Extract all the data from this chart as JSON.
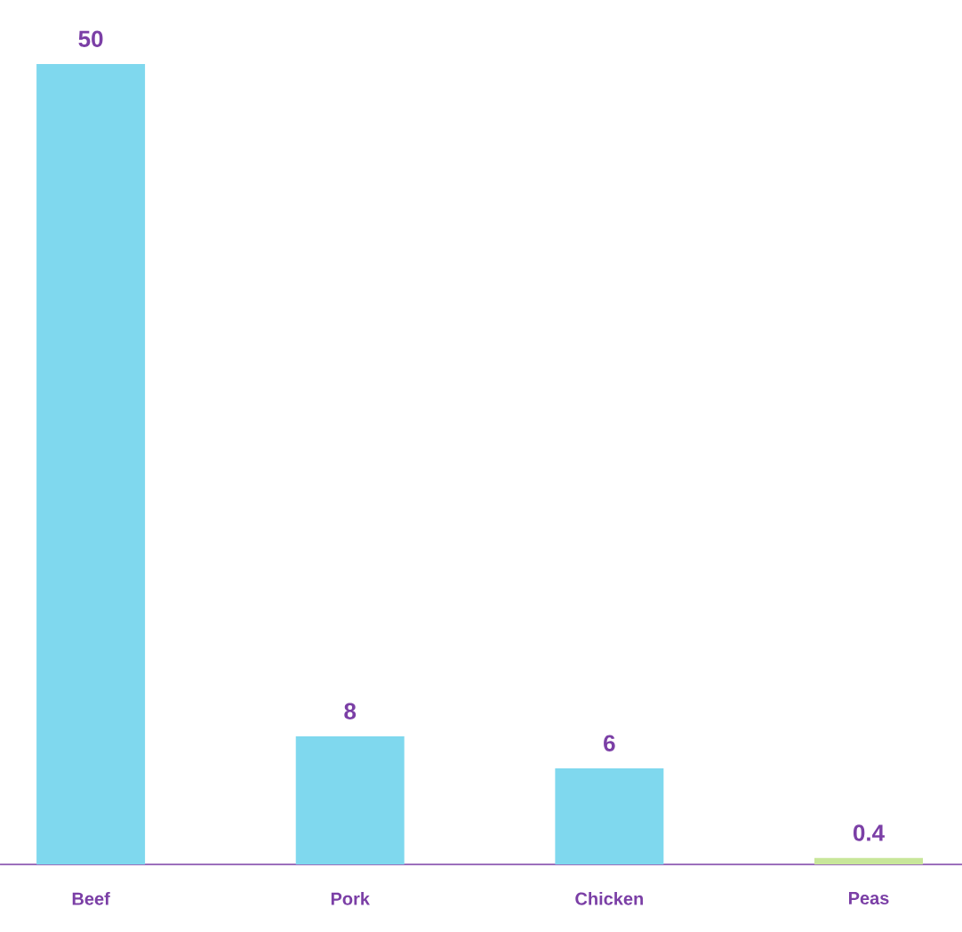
{
  "chart_data": {
    "type": "bar",
    "categories": [
      "Beef",
      "Pork",
      "Chicken",
      "Peas"
    ],
    "values": [
      50,
      8,
      6,
      0.4
    ],
    "colors": [
      "#7fd8ee",
      "#7fd8ee",
      "#7fd8ee",
      "#c8e69a"
    ],
    "data_labels": true
  }
}
